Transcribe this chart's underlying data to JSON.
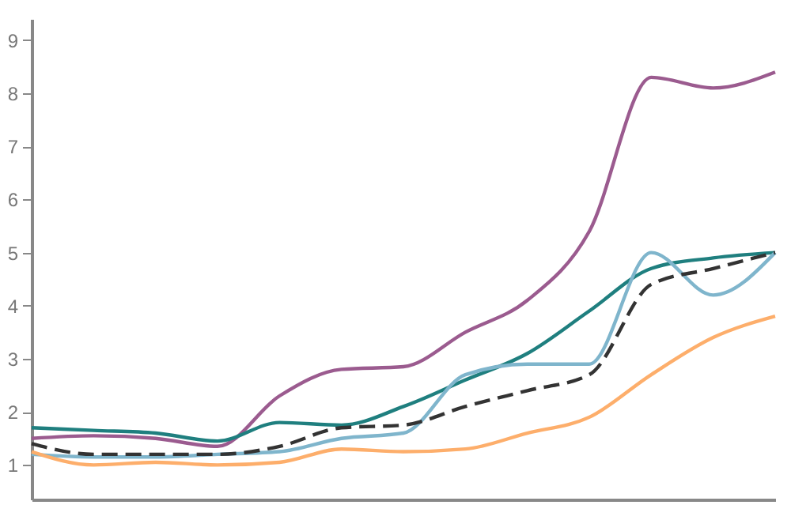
{
  "chart_data": {
    "type": "line",
    "categories": [
      null,
      null,
      null,
      null,
      null,
      null,
      null,
      null,
      null,
      null,
      null,
      null,
      null
    ],
    "series": [
      {
        "color": "#9b5b8f",
        "values": [
          1.5,
          1.55,
          1.5,
          1.35,
          2.3,
          2.8,
          2.85,
          3.5,
          4.1,
          5.4,
          8.3,
          8.1,
          8.4
        ]
      },
      {
        "color": "#1f7f7f",
        "values": [
          1.7,
          1.65,
          1.6,
          1.45,
          1.8,
          1.75,
          2.1,
          2.6,
          3.1,
          3.9,
          4.7,
          4.9,
          5.0
        ]
      },
      {
        "color": "#7fb5cc",
        "values": [
          1.2,
          1.15,
          1.15,
          1.2,
          1.25,
          1.5,
          1.6,
          2.7,
          2.9,
          2.9,
          5.0,
          4.2,
          5.0
        ]
      },
      {
        "color": "#fdae6b",
        "values": [
          1.25,
          1.0,
          1.05,
          1.0,
          1.05,
          1.3,
          1.25,
          1.3,
          1.6,
          1.9,
          2.7,
          3.4,
          3.8
        ]
      },
      {
        "color": "#333333",
        "line_style": "dashed",
        "values": [
          1.4,
          1.2,
          1.2,
          1.2,
          1.35,
          1.7,
          1.75,
          2.1,
          2.4,
          2.7,
          4.4,
          4.7,
          5.0
        ]
      }
    ],
    "ylim": [
      0.35,
      9.4
    ],
    "yticks": [
      1,
      2,
      3,
      4,
      5,
      6,
      7,
      8,
      9
    ],
    "tick_labels": "y",
    "grid": false,
    "legend": false,
    "marker": "none",
    "line_style": "solid"
  }
}
